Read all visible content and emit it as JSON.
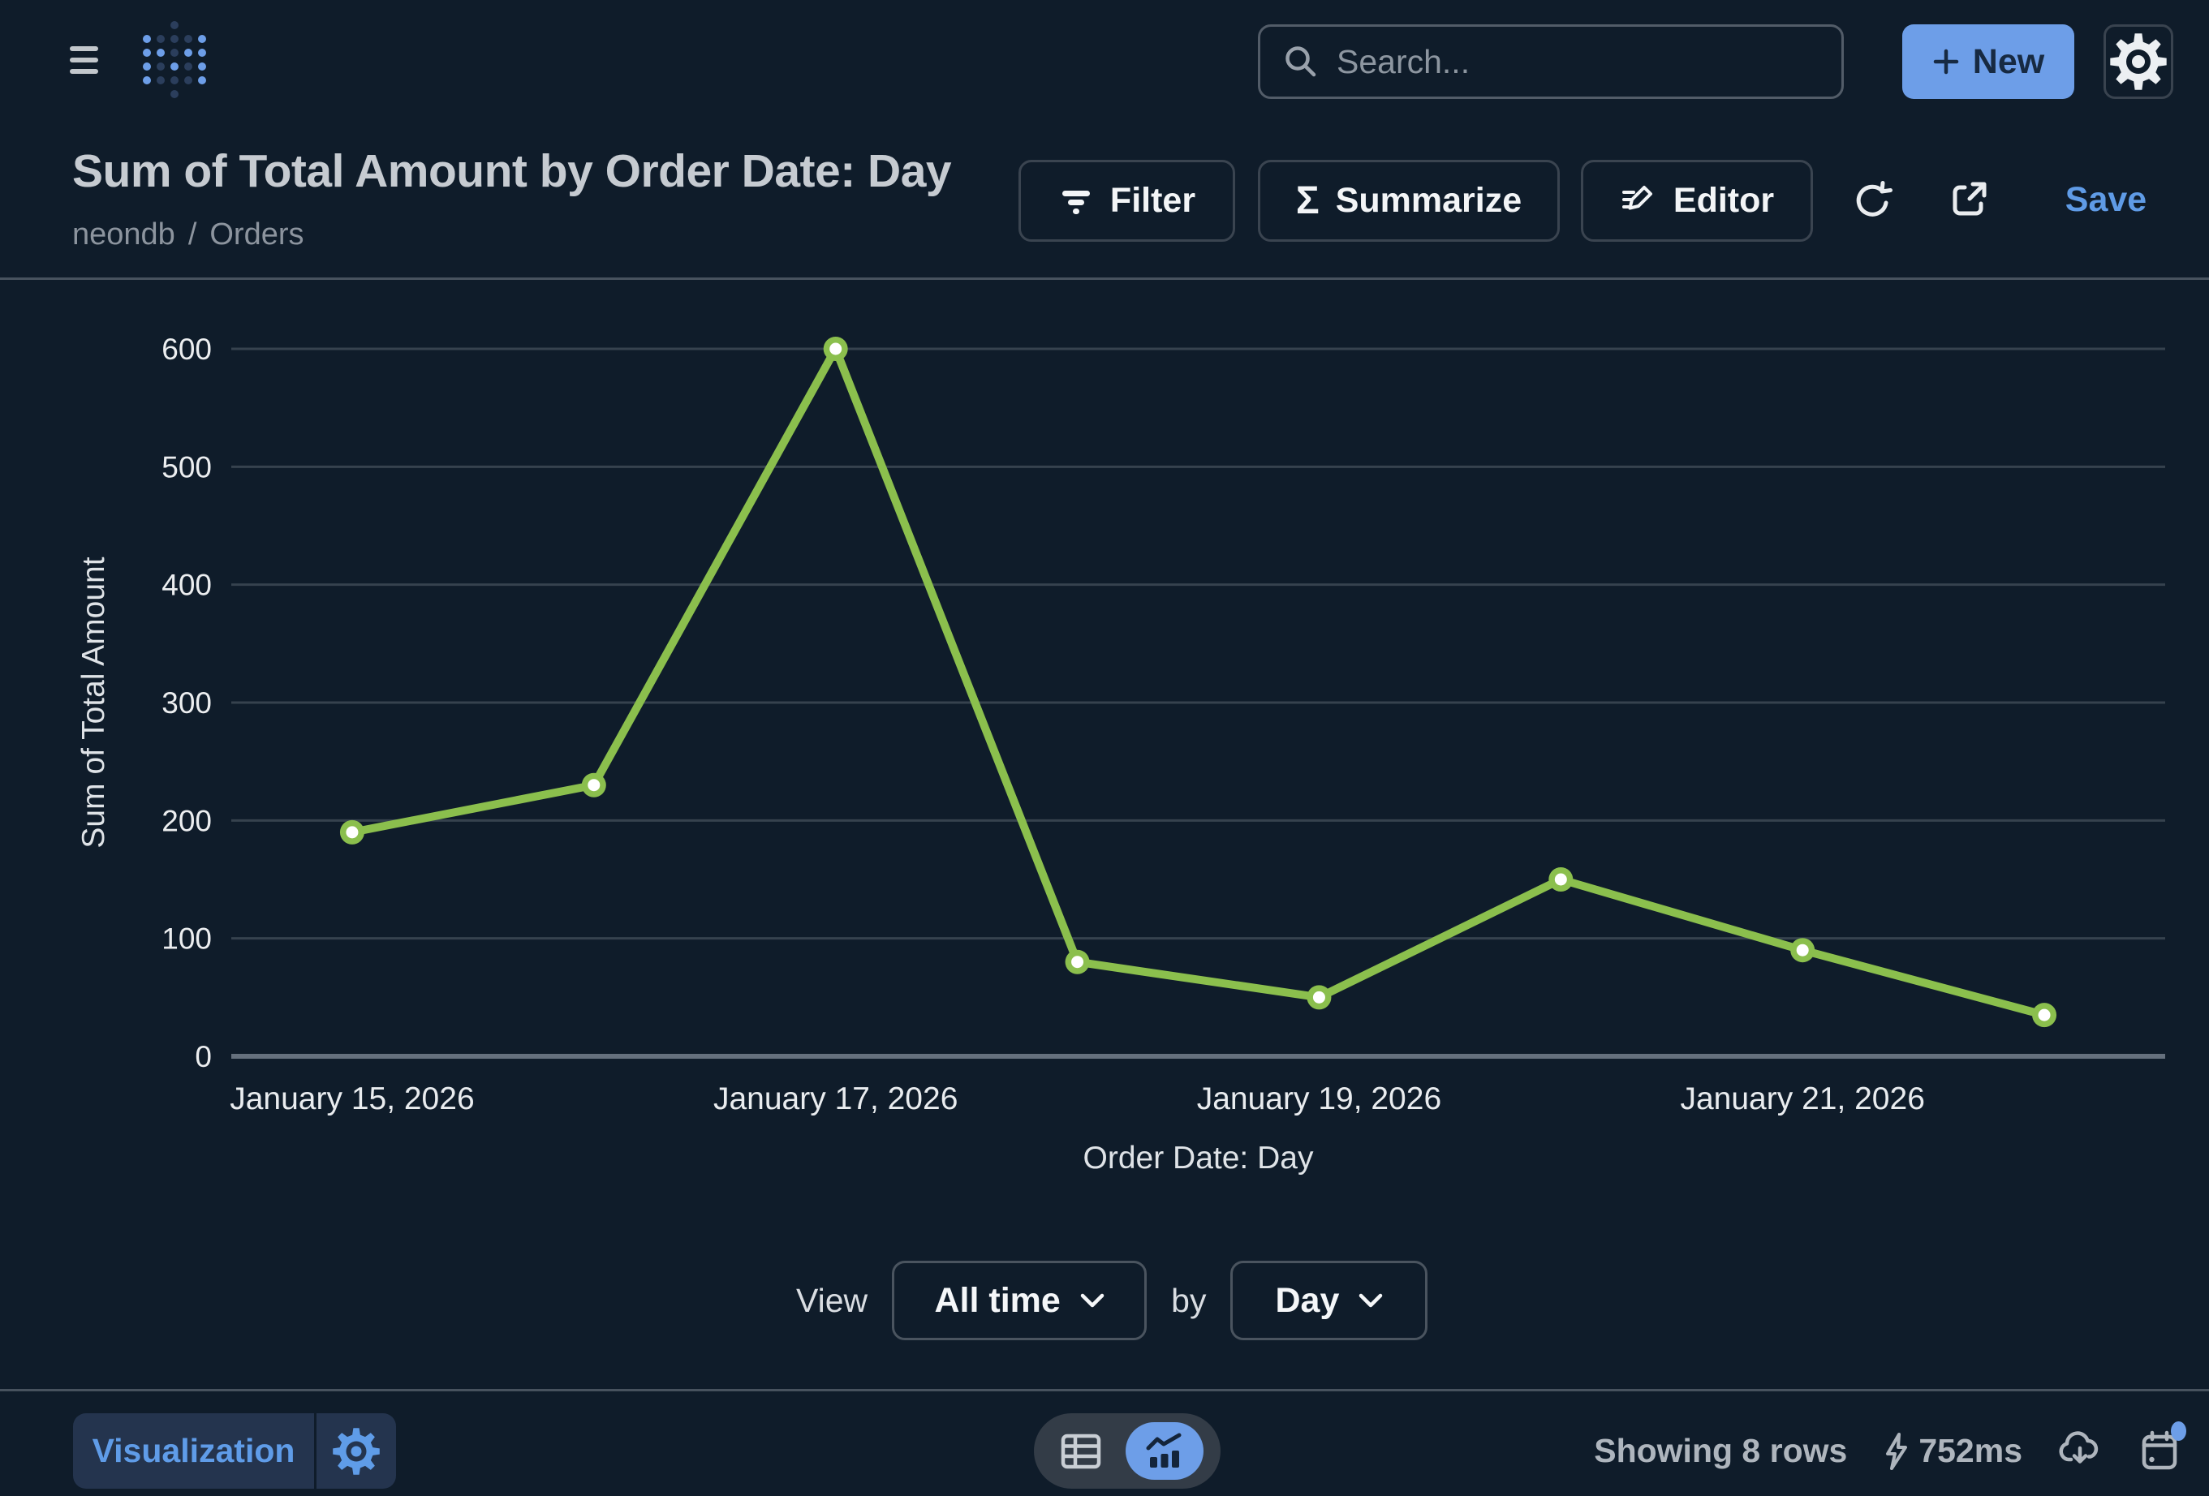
{
  "topbar": {
    "search_placeholder": "Search...",
    "new_button_label": "New"
  },
  "header": {
    "title": "Sum of Total Amount by Order Date: Day",
    "breadcrumb": {
      "database": "neondb",
      "separator": "/",
      "table": "Orders"
    },
    "filter_label": "Filter",
    "summarize_label": "Summarize",
    "summarize_glyph": "Σ",
    "editor_label": "Editor",
    "save_label": "Save"
  },
  "chart_data": {
    "type": "line",
    "series_name": "Sum of Total Amount",
    "x": [
      "January 15, 2026",
      "January 16, 2026",
      "January 17, 2026",
      "January 18, 2026",
      "January 19, 2026",
      "January 20, 2026",
      "January 21, 2026",
      "January 22, 2026"
    ],
    "values": [
      190,
      230,
      600,
      80,
      50,
      150,
      90,
      35
    ],
    "xlabel": "Order Date: Day",
    "ylabel": "Sum of Total Amount",
    "ylim": [
      0,
      600
    ],
    "yticks": [
      0,
      100,
      200,
      300,
      400,
      500,
      600
    ],
    "x_tick_labels": [
      "January 15, 2026",
      "January 17, 2026",
      "January 19, 2026",
      "January 21, 2026"
    ],
    "grid": true,
    "legend": false,
    "line_color": "#8BBF4D",
    "marker_fill": "#FFFFFF"
  },
  "view_controls": {
    "view_label": "View",
    "view_value": "All time",
    "by_label": "by",
    "by_value": "Day"
  },
  "footer": {
    "visualization_label": "Visualization",
    "row_count_text": "Showing 8 rows",
    "query_duration": "752ms"
  },
  "colors": {
    "background": "#0F1C2A",
    "brand_blue": "#6D9EE8",
    "logo_dim_blue": "#2B3E5C",
    "line_green": "#8BBF4D",
    "save_blue": "#5F9BE6",
    "grid_line": "#36424E",
    "axis_base": "#65707D"
  }
}
